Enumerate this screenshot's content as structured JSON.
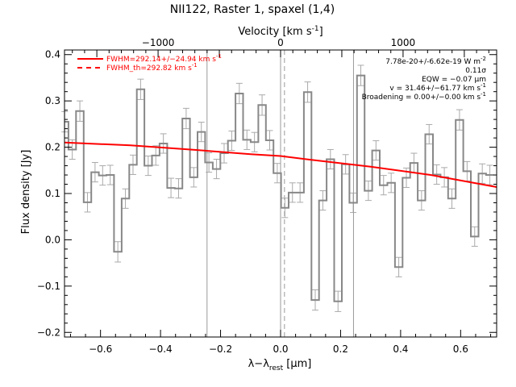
{
  "chart_data": {
    "type": "line",
    "title": "NII122, Raster 1, spaxel (1,4)",
    "xlabel": "λ−λ",
    "xlabel_sub": "rest",
    "xlabel_unit": " [μm]",
    "ylabel": "Flux density [Jy]",
    "x2label": "Velocity [km s",
    "x2label_sup": "-1",
    "x2label_end": "]",
    "xlim": [
      -0.72,
      0.72
    ],
    "ylim": [
      -0.21,
      0.41
    ],
    "x2lim": [
      -1764,
      1764
    ],
    "xticks": [
      -0.6,
      -0.4,
      -0.2,
      0.0,
      0.2,
      0.4,
      0.6
    ],
    "xtick_labels": [
      "−0.6",
      "−0.4",
      "−0.2",
      "0.0",
      "0.2",
      "0.4",
      "0.6"
    ],
    "yticks": [
      -0.2,
      -0.1,
      0.0,
      0.1,
      0.2,
      0.3,
      0.4
    ],
    "ytick_labels": [
      "−0.2",
      "−0.1",
      "0.0",
      "0.1",
      "0.2",
      "0.3",
      "0.4"
    ],
    "x2ticks": [
      -1000,
      0,
      1000
    ],
    "x2tick_labels": [
      "−1000",
      "0",
      "1000"
    ],
    "vlines_solid": [
      -0.245,
      0.0,
      0.243
    ],
    "vline_dashed": 0.013,
    "grid": false,
    "legend_position": "top-left",
    "legend": [
      {
        "label": "FWHM=292.14+/−24.94 km s",
        "sup": "-1",
        "style": "solid"
      },
      {
        "label": "FWHM_th=292.82 km s",
        "sup": "-1",
        "style": "dashed"
      }
    ],
    "annotations": [
      {
        "text": "7.78e-20+/-6.62e-19 W m",
        "sup": "-2"
      },
      {
        "text": "0.11σ",
        "sup": ""
      },
      {
        "text": "EQW = −0.07 μm",
        "sup": ""
      },
      {
        "text": "v = 31.46+/−61.77 km s",
        "sup": "-1"
      },
      {
        "text": "Broadening = 0.00+/−0.00 km s",
        "sup": "-1"
      }
    ],
    "spectrum": {
      "name": "data",
      "x": [
        -0.7194,
        -0.6941,
        -0.6688,
        -0.6435,
        -0.6182,
        -0.5929,
        -0.5676,
        -0.5423,
        -0.517,
        -0.4917,
        -0.4664,
        -0.4411,
        -0.4158,
        -0.3905,
        -0.3652,
        -0.3399,
        -0.3146,
        -0.2893,
        -0.264,
        -0.2387,
        -0.2134,
        -0.1881,
        -0.1628,
        -0.1375,
        -0.1122,
        -0.0869,
        -0.0616,
        -0.0363,
        -0.011,
        0.0143,
        0.0396,
        0.0649,
        0.0902,
        0.1155,
        0.1408,
        0.1661,
        0.1914,
        0.2167,
        0.242,
        0.2673,
        0.2926,
        0.3179,
        0.3432,
        0.3685,
        0.3938,
        0.4191,
        0.4444,
        0.4697,
        0.495,
        0.5203,
        0.5456,
        0.5709,
        0.5962,
        0.6215,
        0.6468,
        0.6721,
        0.6974
      ],
      "y": [
        0.255,
        0.195,
        0.278,
        0.081,
        0.146,
        0.139,
        0.14,
        -0.026,
        0.089,
        0.162,
        0.325,
        0.16,
        0.182,
        0.208,
        0.112,
        0.111,
        0.262,
        0.135,
        0.233,
        0.167,
        0.153,
        0.187,
        0.214,
        0.316,
        0.216,
        0.211,
        0.291,
        0.215,
        0.144,
        0.069,
        0.102,
        0.102,
        0.319,
        -0.13,
        0.085,
        0.174,
        -0.133,
        0.163,
        0.08,
        0.355,
        0.106,
        0.193,
        0.118,
        0.123,
        -0.059,
        0.134,
        0.166,
        0.085,
        0.228,
        0.141,
        0.135,
        0.089,
        0.259,
        0.148,
        0.007,
        0.143,
        0.14
      ],
      "err": [
        0.022,
        0.021,
        0.022,
        0.021,
        0.021,
        0.021,
        0.021,
        0.022,
        0.021,
        0.021,
        0.022,
        0.021,
        0.021,
        0.021,
        0.021,
        0.021,
        0.022,
        0.021,
        0.021,
        0.021,
        0.021,
        0.021,
        0.021,
        0.022,
        0.021,
        0.021,
        0.022,
        0.021,
        0.021,
        0.021,
        0.021,
        0.021,
        0.022,
        0.022,
        0.021,
        0.021,
        0.022,
        0.021,
        0.021,
        0.022,
        0.021,
        0.021,
        0.021,
        0.021,
        0.021,
        0.021,
        0.021,
        0.021,
        0.021,
        0.021,
        0.021,
        0.021,
        0.022,
        0.021,
        0.021,
        0.021,
        0.021
      ]
    },
    "fit": {
      "name": "fit",
      "x": [
        -0.72,
        -0.5,
        -0.3,
        -0.1,
        0.0,
        0.1,
        0.3,
        0.5,
        0.72
      ],
      "y": [
        0.21,
        0.204,
        0.195,
        0.185,
        0.181,
        0.173,
        0.158,
        0.14,
        0.114
      ]
    },
    "colors": {
      "axes": "#000000",
      "spectrum": "#888888",
      "errorbar": "#aaaaaa",
      "fit": "#ff0000",
      "vline": "#999999"
    }
  }
}
